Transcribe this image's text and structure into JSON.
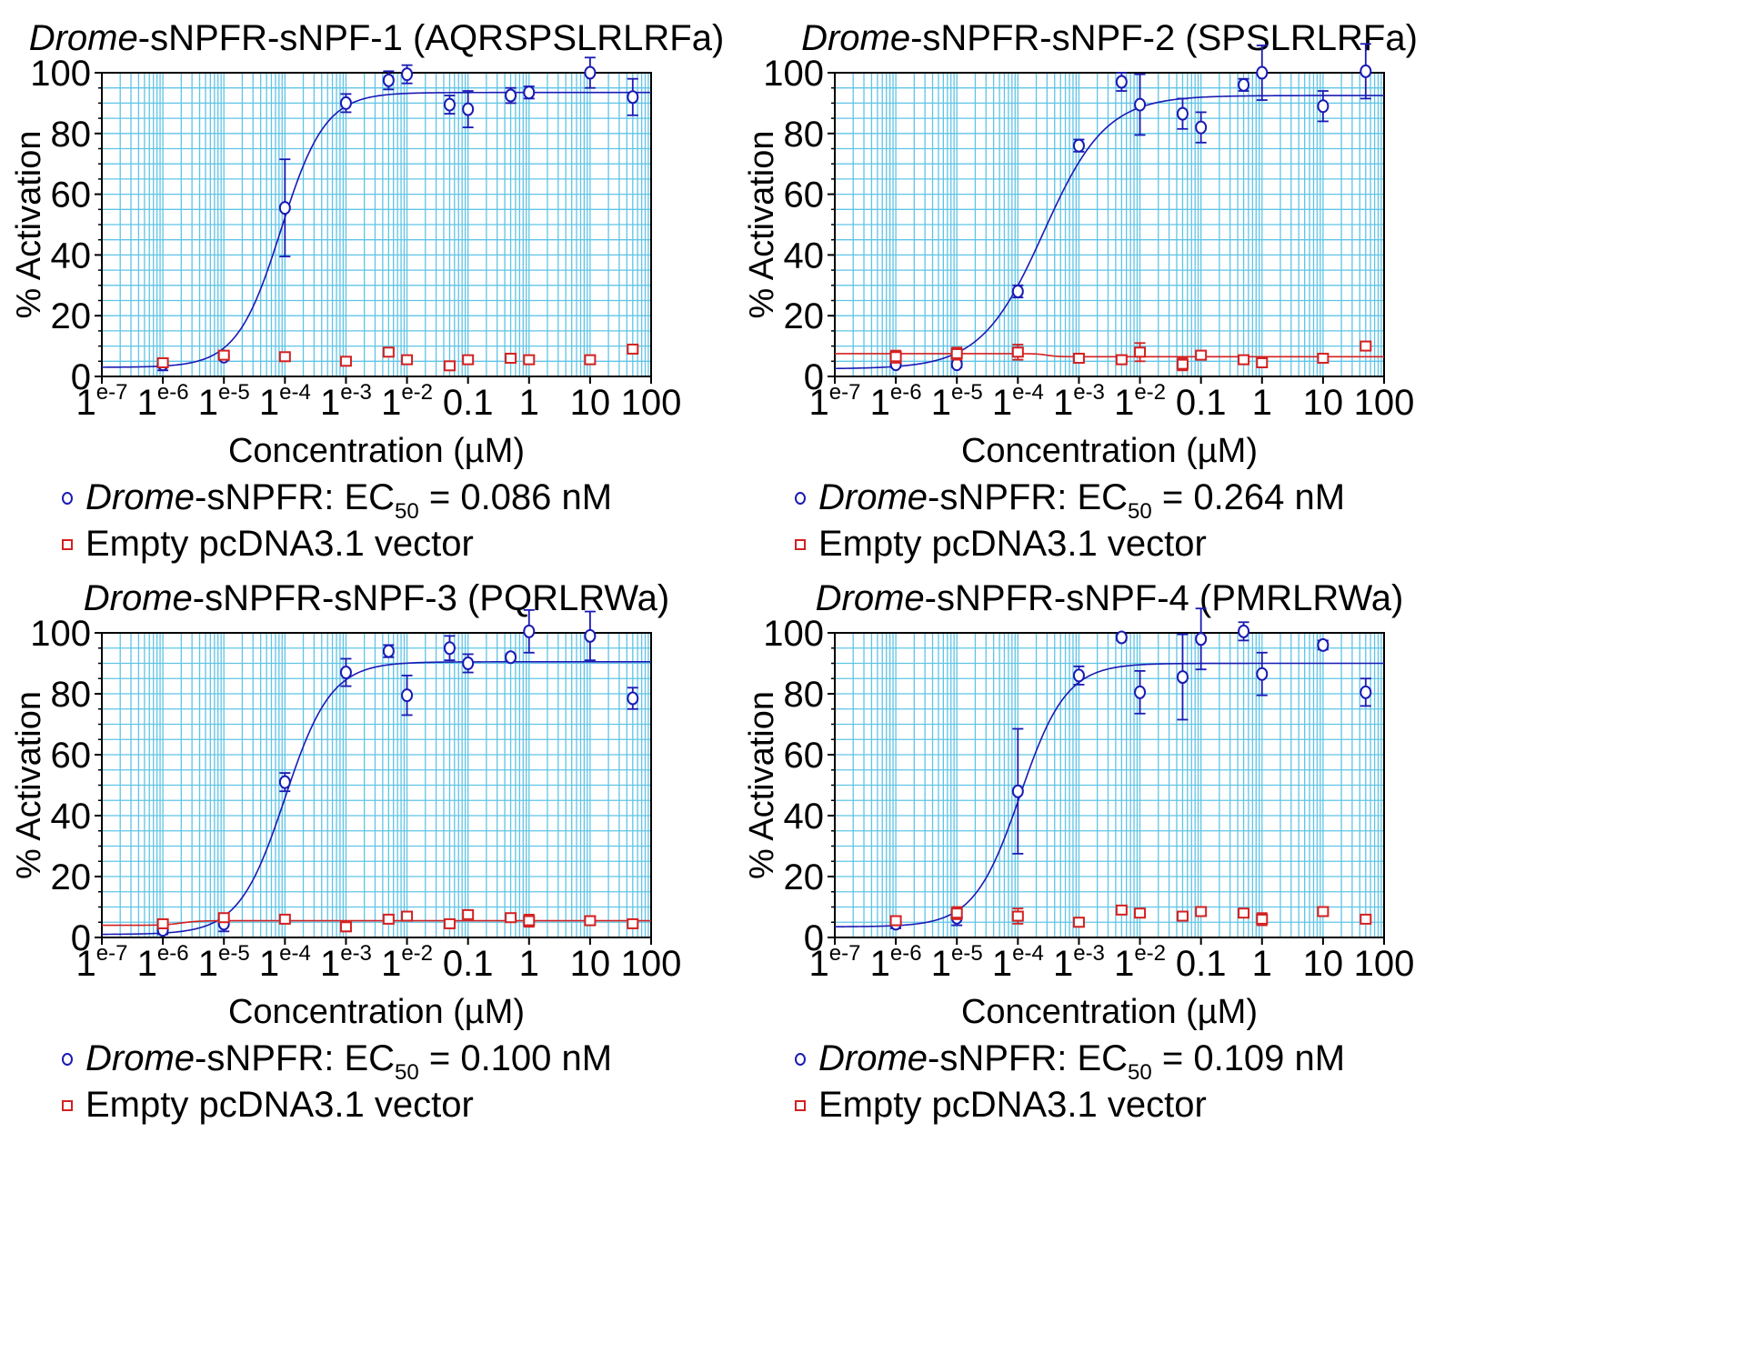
{
  "chart_data": [
    {
      "type": "scatter",
      "title_italic": "Drome",
      "title_rest": "-sNPFR-sNPF-1 (AQRSPSLRLRFa)",
      "xlabel": "Concentration (µM)",
      "ylabel": "% Activation",
      "xscale": "log",
      "xlim": [
        1e-07,
        100
      ],
      "ylim": [
        0,
        100
      ],
      "yticks": [
        "0",
        "20",
        "40",
        "60",
        "80",
        "100"
      ],
      "xtick_labels": [
        {
          "base": "1",
          "sup": "e-7"
        },
        {
          "base": "1",
          "sup": "e-6"
        },
        {
          "base": "1",
          "sup": "e-5"
        },
        {
          "base": "1",
          "sup": "e-4"
        },
        {
          "base": "1",
          "sup": "e-3"
        },
        {
          "base": "1",
          "sup": "e-2"
        },
        {
          "base": "0.1",
          "sup": ""
        },
        {
          "base": "1",
          "sup": ""
        },
        {
          "base": "10",
          "sup": ""
        },
        {
          "base": "100",
          "sup": ""
        }
      ],
      "grid": true,
      "legend_position": "below",
      "series": [
        {
          "name": "Drome-sNPFR",
          "legend_italic": "Drome",
          "legend_rest": "-sNPFR: EC",
          "legend_sub": "50",
          "legend_tail": " = 0.086 nM",
          "color": "#1a1ab4",
          "marker": "circle",
          "x": [
            1e-06,
            1e-05,
            0.0001,
            0.001,
            0.005,
            0.01,
            0.05,
            0.1,
            0.5,
            1,
            10,
            50
          ],
          "y": [
            4,
            6.5,
            55.5,
            90,
            97.5,
            99.5,
            89.5,
            88,
            92.5,
            93.5,
            100,
            92
          ],
          "err": [
            2,
            1,
            16,
            3,
            3,
            3,
            3,
            6,
            2.5,
            2,
            5,
            6
          ],
          "fit": {
            "bottom": 3,
            "top": 93.5,
            "ec50_uM": 8.6e-05,
            "hill": 1.2
          }
        },
        {
          "name": "Empty pcDNA3.1 vector",
          "legend_text": "Empty pcDNA3.1 vector",
          "color": "#d42020",
          "marker": "square",
          "x": [
            1e-06,
            1e-05,
            0.0001,
            0.001,
            0.005,
            0.01,
            0.05,
            0.1,
            0.5,
            1,
            10,
            50
          ],
          "y": [
            4.5,
            7,
            6.5,
            5,
            8,
            5.5,
            3.5,
            5.5,
            6,
            5.5,
            5.5,
            9
          ],
          "err": [
            1,
            1,
            1,
            1,
            1,
            1,
            1,
            1,
            1,
            1,
            1,
            1
          ],
          "fit": null
        }
      ]
    },
    {
      "type": "scatter",
      "title_italic": "Drome",
      "title_rest": "-sNPFR-sNPF-2 (SPSLRLRFa)",
      "xlabel": "Concentration (µM)",
      "ylabel": "% Activation",
      "xscale": "log",
      "xlim": [
        1e-07,
        100
      ],
      "ylim": [
        0,
        100
      ],
      "yticks": [
        "0",
        "20",
        "40",
        "60",
        "80",
        "100"
      ],
      "xtick_labels": [
        {
          "base": "1",
          "sup": "e-7"
        },
        {
          "base": "1",
          "sup": "e-6"
        },
        {
          "base": "1",
          "sup": "e-5"
        },
        {
          "base": "1",
          "sup": "e-4"
        },
        {
          "base": "1",
          "sup": "e-3"
        },
        {
          "base": "1",
          "sup": "e-2"
        },
        {
          "base": "0.1",
          "sup": ""
        },
        {
          "base": "1",
          "sup": ""
        },
        {
          "base": "10",
          "sup": ""
        },
        {
          "base": "100",
          "sup": ""
        }
      ],
      "grid": true,
      "legend_position": "below",
      "series": [
        {
          "name": "Drome-sNPFR",
          "legend_italic": "Drome",
          "legend_rest": "-sNPFR: EC",
          "legend_sub": "50",
          "legend_tail": " = 0.264 nM",
          "color": "#1a1ab4",
          "marker": "circle",
          "x": [
            1e-06,
            1e-05,
            0.0001,
            0.001,
            0.005,
            0.01,
            0.05,
            0.1,
            0.5,
            1,
            10,
            50
          ],
          "y": [
            4,
            4,
            28,
            76,
            97,
            89.5,
            86.5,
            82,
            96,
            100,
            89,
            100.5
          ],
          "err": [
            1,
            1,
            2,
            2,
            3,
            10,
            5,
            5,
            2,
            9,
            5,
            9
          ],
          "fit": {
            "bottom": 2.5,
            "top": 92.5,
            "ec50_uM": 0.000264,
            "hill": 0.85
          }
        },
        {
          "name": "Empty pcDNA3.1 vector",
          "legend_text": "Empty pcDNA3.1 vector",
          "color": "#d42020",
          "marker": "square",
          "x": [
            1e-06,
            1e-05,
            0.0001,
            0.001,
            0.005,
            0.01,
            0.05,
            0.1,
            0.5,
            1,
            10,
            50
          ],
          "y": [
            6.5,
            7.5,
            8,
            6,
            5.5,
            8,
            4,
            7,
            5.5,
            4.5,
            6,
            10
          ],
          "err": [
            2,
            2,
            2.5,
            1.5,
            1.5,
            3,
            2,
            1,
            1,
            1.5,
            1,
            1.5
          ],
          "fit": {
            "bottom": 6.5,
            "top": 7.5,
            "ec50_uM": 0.0003,
            "hill": -5
          }
        }
      ]
    },
    {
      "type": "scatter",
      "title_italic": "Drome",
      "title_rest": "-sNPFR-sNPF-3 (PQRLRWa)",
      "xlabel": "Concentration (µM)",
      "ylabel": "% Activation",
      "xscale": "log",
      "xlim": [
        1e-07,
        100
      ],
      "ylim": [
        0,
        100
      ],
      "yticks": [
        "0",
        "20",
        "40",
        "60",
        "80",
        "100"
      ],
      "xtick_labels": [
        {
          "base": "1",
          "sup": "e-7"
        },
        {
          "base": "1",
          "sup": "e-6"
        },
        {
          "base": "1",
          "sup": "e-5"
        },
        {
          "base": "1",
          "sup": "e-4"
        },
        {
          "base": "1",
          "sup": "e-3"
        },
        {
          "base": "1",
          "sup": "e-2"
        },
        {
          "base": "0.1",
          "sup": ""
        },
        {
          "base": "1",
          "sup": ""
        },
        {
          "base": "10",
          "sup": ""
        },
        {
          "base": "100",
          "sup": ""
        }
      ],
      "grid": true,
      "legend_position": "below",
      "series": [
        {
          "name": "Drome-sNPFR",
          "legend_italic": "Drome",
          "legend_rest": "-sNPFR: EC",
          "legend_sub": "50",
          "legend_tail": " = 0.100 nM",
          "color": "#1a1ab4",
          "marker": "circle",
          "x": [
            1e-06,
            1e-05,
            0.0001,
            0.001,
            0.005,
            0.01,
            0.05,
            0.1,
            0.5,
            1,
            10,
            50
          ],
          "y": [
            2.5,
            4.5,
            51,
            87,
            94,
            79.5,
            95,
            90,
            92,
            100.5,
            99,
            78.5
          ],
          "err": [
            1.5,
            2.5,
            3,
            4.5,
            2,
            6.5,
            4,
            3,
            1,
            7,
            8,
            3.5
          ],
          "fit": {
            "bottom": 1,
            "top": 90.5,
            "ec50_uM": 0.0001,
            "hill": 1.15
          }
        },
        {
          "name": "Empty pcDNA3.1 vector",
          "legend_text": "Empty pcDNA3.1 vector",
          "color": "#d42020",
          "marker": "square",
          "x": [
            1e-06,
            1e-05,
            0.0001,
            0.001,
            0.005,
            0.01,
            0.05,
            0.1,
            0.5,
            1,
            10,
            50
          ],
          "y": [
            4.5,
            6.5,
            6,
            3.5,
            6,
            7,
            4.5,
            7.5,
            6.5,
            5.5,
            5.5,
            4.5
          ],
          "err": [
            1.5,
            1,
            1,
            1.5,
            1,
            1,
            1,
            1,
            1,
            2,
            1.5,
            1
          ],
          "fit": {
            "bottom": 4,
            "top": 5.5,
            "ec50_uM": 2e-06,
            "hill": 3
          }
        }
      ]
    },
    {
      "type": "scatter",
      "title_italic": "Drome",
      "title_rest": "-sNPFR-sNPF-4 (PMRLRWa)",
      "xlabel": "Concentration (µM)",
      "ylabel": "% Activation",
      "xscale": "log",
      "xlim": [
        1e-07,
        100
      ],
      "ylim": [
        0,
        100
      ],
      "yticks": [
        "0",
        "20",
        "40",
        "60",
        "80",
        "100"
      ],
      "xtick_labels": [
        {
          "base": "1",
          "sup": "e-7"
        },
        {
          "base": "1",
          "sup": "e-6"
        },
        {
          "base": "1",
          "sup": "e-5"
        },
        {
          "base": "1",
          "sup": "e-4"
        },
        {
          "base": "1",
          "sup": "e-3"
        },
        {
          "base": "1",
          "sup": "e-2"
        },
        {
          "base": "0.1",
          "sup": ""
        },
        {
          "base": "1",
          "sup": ""
        },
        {
          "base": "10",
          "sup": ""
        },
        {
          "base": "100",
          "sup": ""
        }
      ],
      "grid": true,
      "legend_position": "below",
      "series": [
        {
          "name": "Drome-sNPFR",
          "legend_italic": "Drome",
          "legend_rest": "-sNPFR: EC",
          "legend_sub": "50",
          "legend_tail": " = 0.109 nM",
          "color": "#1a1ab4",
          "marker": "circle",
          "x": [
            1e-06,
            1e-05,
            0.0001,
            0.001,
            0.005,
            0.01,
            0.05,
            0.1,
            0.5,
            1,
            10,
            50
          ],
          "y": [
            4.5,
            6.5,
            48,
            86,
            98.5,
            80.5,
            85.5,
            98,
            100.5,
            86.5,
            96,
            80.5
          ],
          "err": [
            1.5,
            2.5,
            20.5,
            3,
            1,
            7,
            14,
            10,
            3,
            7,
            1.5,
            4.5
          ],
          "fit": {
            "bottom": 3.5,
            "top": 90,
            "ec50_uM": 0.000109,
            "hill": 1.15
          }
        },
        {
          "name": "Empty pcDNA3.1 vector",
          "legend_text": "Empty pcDNA3.1 vector",
          "color": "#d42020",
          "marker": "square",
          "x": [
            1e-06,
            1e-05,
            0.0001,
            0.001,
            0.005,
            0.01,
            0.05,
            0.1,
            0.5,
            1,
            10,
            50
          ],
          "y": [
            5.5,
            8,
            7,
            5,
            9,
            8,
            7,
            8.5,
            8,
            6,
            8.5,
            6
          ],
          "err": [
            1.5,
            2,
            2.5,
            1.5,
            1,
            1,
            1,
            1,
            1,
            2,
            1,
            1
          ],
          "fit": null
        }
      ]
    }
  ]
}
